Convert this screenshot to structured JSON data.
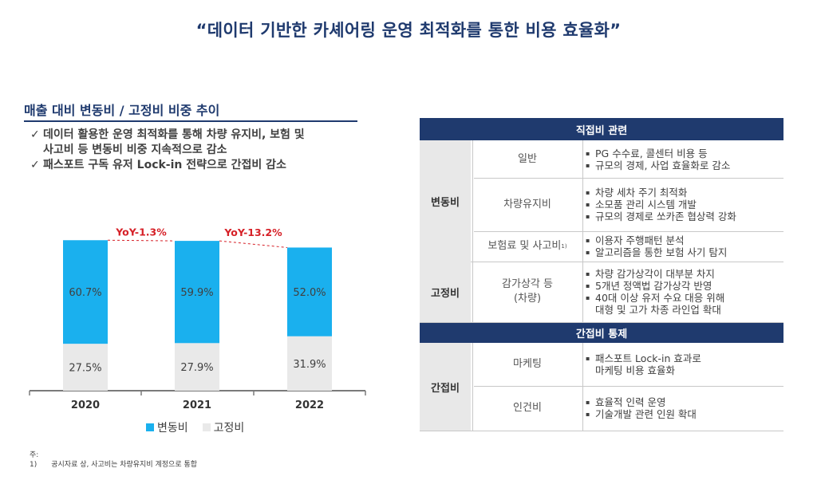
{
  "page_title": "“데이터 기반한 카셰어링 운영 최적화를 통한 비용 효율화”",
  "left": {
    "section_title": "매출 대비 변동비 / 고정비 비중 추이",
    "bullets": [
      {
        "check": "✓",
        "lines": [
          "데이터 활용한 운영 최적화를 통해 차량 유지비, 보험 및",
          "사고비 등 변동비 비중 지속적으로 감소"
        ]
      },
      {
        "check": "✓",
        "lines": [
          "패스포트 구독 유저 Lock-in 전략으로 간접비 감소"
        ]
      }
    ]
  },
  "chart_data": {
    "type": "bar",
    "stacked": true,
    "categories": [
      "2020",
      "2021",
      "2022"
    ],
    "series": [
      {
        "name": "고정비",
        "values": [
          27.5,
          27.9,
          31.9
        ],
        "labels": [
          "27.5%",
          "27.9%",
          "31.9%"
        ],
        "color": "#e9e9e9"
      },
      {
        "name": "변동비",
        "values": [
          60.7,
          59.9,
          52.0
        ],
        "labels": [
          "60.7%",
          "59.9%",
          "52.0%"
        ],
        "color": "#1ab0ee"
      }
    ],
    "annotations": [
      {
        "text": "YoY-1.3%",
        "from": "2020",
        "to": "2021",
        "color": "#d62027"
      },
      {
        "text": "YoY-13.2%",
        "from": "2021",
        "to": "2022",
        "color": "#d62027"
      }
    ],
    "ylim": [
      0,
      90
    ],
    "legend": [
      "변동비",
      "고정비"
    ],
    "legend_position": "bottom"
  },
  "notes": {
    "label": "주:",
    "items": [
      {
        "num": "1)",
        "text": "공시자료 상, 사고비는 차량유지비 계정으로 통합"
      }
    ]
  },
  "table": {
    "direct_header": "직접비 관련",
    "indirect_header": "간접비 통제",
    "bullet_char": "▪",
    "groups": [
      {
        "category": "변동비",
        "rows": [
          {
            "item": "일반",
            "sup": "",
            "desc": [
              [
                "PG 수수료, 콜센터 비용 등"
              ],
              [
                "규모의 경제, 사업 효율화로 감소"
              ]
            ]
          },
          {
            "item": "차량유지비",
            "sup": "",
            "desc": [
              [
                "차량 세차 주기 최적화"
              ],
              [
                "소모품 관리 시스템 개발"
              ],
              [
                "규모의 경제로 쏘카존 협상력 강화"
              ]
            ]
          },
          {
            "item": "보험료 및 사고비",
            "sup": "1)",
            "desc": [
              [
                "이용자 주행패턴 분석"
              ],
              [
                "알고리즘을 통한 보험 사기 탐지"
              ]
            ]
          }
        ]
      },
      {
        "category": "고정비",
        "rows": [
          {
            "item": "감가상각 등\n(차량)",
            "sup": "",
            "desc": [
              [
                "차량 감가상각이 대부분 차지"
              ],
              [
                "5개년 정액법 감가상각 반영"
              ],
              [
                "40대 이상 유저 수요 대응 위해",
                "대형 및 고가 차종 라인업 확대"
              ]
            ]
          }
        ]
      },
      {
        "category": "간접비",
        "rows": [
          {
            "item": "마케팅",
            "sup": "",
            "desc": [
              [
                "패스포트 Lock-in 효과로",
                "마케팅 비용 효율화"
              ]
            ]
          },
          {
            "item": "인건비",
            "sup": "",
            "desc": [
              [
                "효율적 인력 운영"
              ],
              [
                "기술개발 관련 인원 확대"
              ]
            ]
          }
        ]
      }
    ]
  }
}
